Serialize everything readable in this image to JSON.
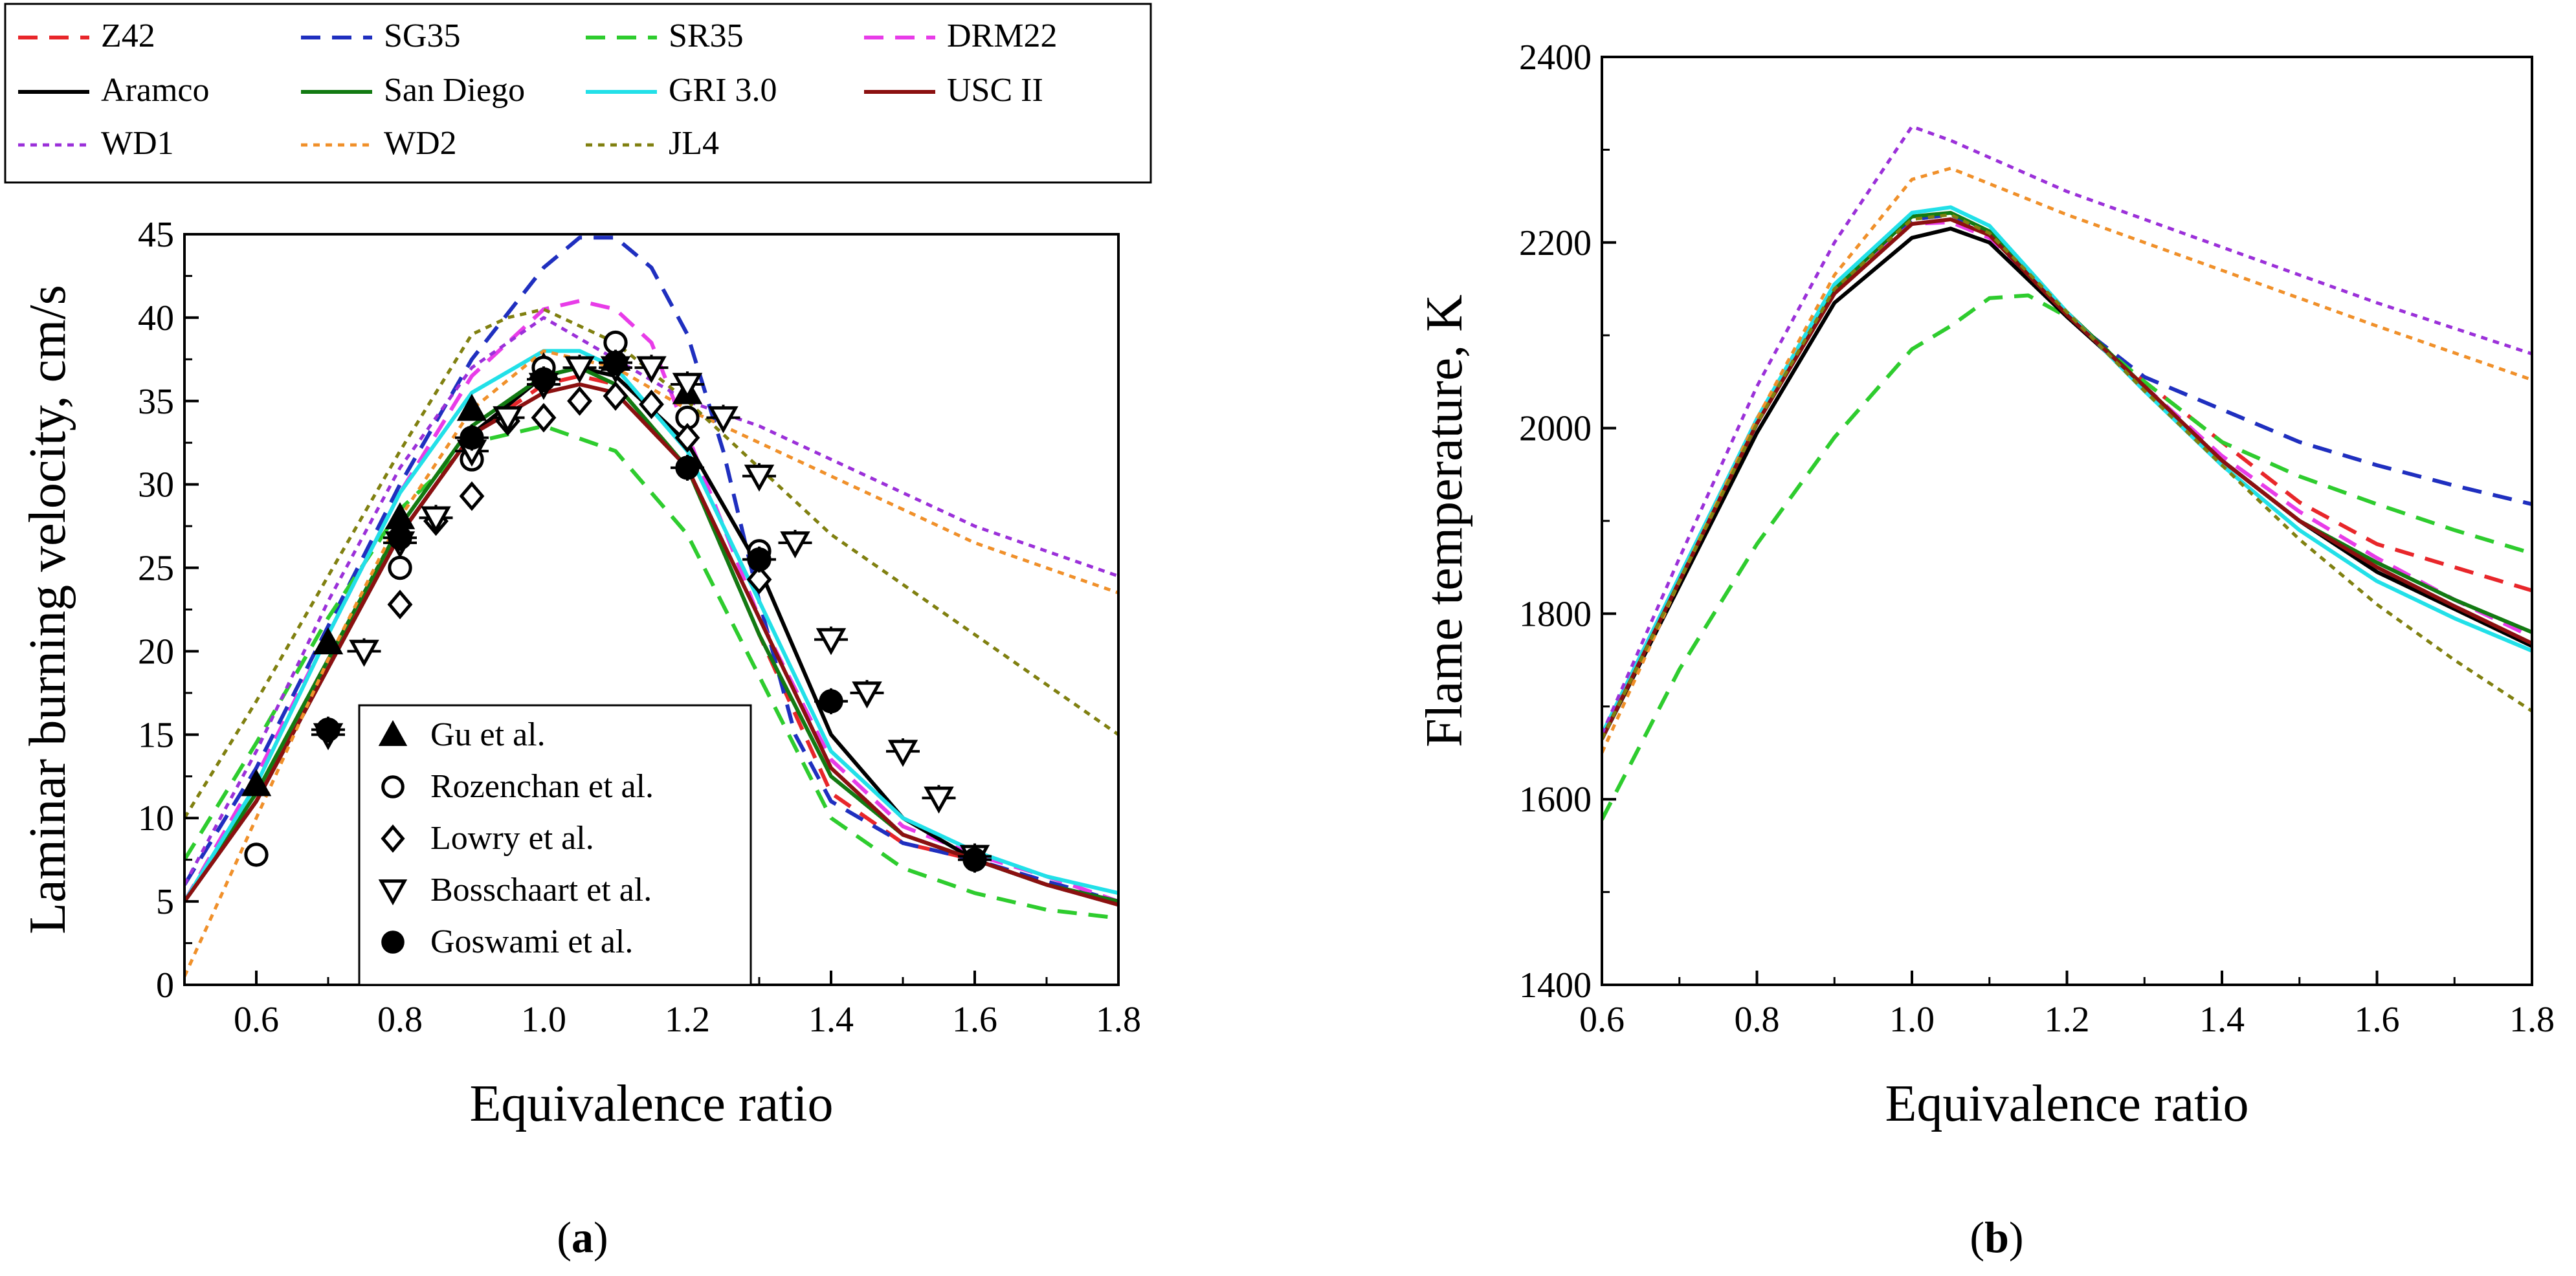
{
  "figure": {
    "caption_a": "(a)",
    "caption_a_letter": "a",
    "caption_b": "(b)",
    "caption_b_letter": "b"
  },
  "legend_models": [
    {
      "name": "Z42",
      "color": "#e8262a",
      "dash": "long"
    },
    {
      "name": "SG35",
      "color": "#1f2fbf",
      "dash": "long"
    },
    {
      "name": "SR35",
      "color": "#2ecc2e",
      "dash": "long"
    },
    {
      "name": "DRM22",
      "color": "#e83ce8",
      "dash": "long"
    },
    {
      "name": "Aramco",
      "color": "#000000",
      "dash": "solid"
    },
    {
      "name": "San Diego",
      "color": "#127a12",
      "dash": "solid"
    },
    {
      "name": "GRI 3.0",
      "color": "#22e0e8",
      "dash": "solid"
    },
    {
      "name": "USC II",
      "color": "#8b1010",
      "dash": "solid"
    },
    {
      "name": "WD1",
      "color": "#9b30d9",
      "dash": "dot"
    },
    {
      "name": "WD2",
      "color": "#f0902a",
      "dash": "dot"
    },
    {
      "name": "JL4",
      "color": "#808010",
      "dash": "dot"
    }
  ],
  "chart_data": [
    {
      "type": "line",
      "panel": "a",
      "title": "",
      "xlabel": "Equivalence ratio",
      "ylabel": "Laminar burning velocity, cm/s",
      "xlim": [
        0.5,
        1.8
      ],
      "ylim": [
        0,
        45
      ],
      "xticks": [
        0.6,
        0.8,
        1.0,
        1.2,
        1.4,
        1.6,
        1.8
      ],
      "xtick_labels": [
        "0.6",
        "0.8",
        "1.0",
        "1.2",
        "1.4",
        "1.6",
        "1.8"
      ],
      "yticks": [
        0,
        5,
        10,
        15,
        20,
        25,
        30,
        35,
        40,
        45
      ],
      "ytick_labels": [
        "0",
        "5",
        "10",
        "15",
        "20",
        "25",
        "30",
        "35",
        "40",
        "45"
      ],
      "series": [
        {
          "name": "Z42",
          "x": [
            0.5,
            0.6,
            0.7,
            0.8,
            0.9,
            1.0,
            1.05,
            1.1,
            1.2,
            1.3,
            1.4,
            1.5,
            1.6,
            1.7,
            1.8
          ],
          "y": [
            5.0,
            11.5,
            19.5,
            27.0,
            33.0,
            36.0,
            36.5,
            36.0,
            31.0,
            21.0,
            11.5,
            8.5,
            7.5,
            6.0,
            5.0
          ]
        },
        {
          "name": "SG35",
          "x": [
            0.5,
            0.6,
            0.7,
            0.8,
            0.9,
            1.0,
            1.05,
            1.1,
            1.15,
            1.2,
            1.25,
            1.3,
            1.35,
            1.4,
            1.5,
            1.6,
            1.7,
            1.8
          ],
          "y": [
            6.0,
            13.0,
            21.5,
            30.0,
            37.5,
            43.0,
            44.8,
            44.8,
            43.0,
            39.0,
            32.0,
            23.0,
            15.0,
            11.0,
            8.5,
            7.5,
            6.2,
            5.0
          ]
        },
        {
          "name": "SR35",
          "x": [
            0.5,
            0.6,
            0.7,
            0.8,
            0.9,
            1.0,
            1.1,
            1.2,
            1.3,
            1.4,
            1.5,
            1.6,
            1.7,
            1.8
          ],
          "y": [
            7.5,
            14.5,
            22.0,
            28.5,
            32.5,
            33.5,
            32.0,
            27.0,
            18.5,
            10.0,
            7.0,
            5.5,
            4.5,
            4.0
          ]
        },
        {
          "name": "DRM22",
          "x": [
            0.5,
            0.6,
            0.7,
            0.8,
            0.9,
            1.0,
            1.05,
            1.1,
            1.15,
            1.2,
            1.3,
            1.4,
            1.5,
            1.6,
            1.7,
            1.8
          ],
          "y": [
            5.0,
            12.5,
            21.0,
            29.5,
            36.5,
            40.5,
            41.0,
            40.5,
            38.5,
            33.0,
            22.0,
            13.5,
            9.5,
            7.8,
            6.5,
            5.0
          ]
        },
        {
          "name": "Aramco",
          "x": [
            0.5,
            0.6,
            0.7,
            0.8,
            0.9,
            1.0,
            1.05,
            1.1,
            1.2,
            1.3,
            1.35,
            1.4,
            1.5,
            1.6,
            1.7,
            1.8
          ],
          "y": [
            5.0,
            11.0,
            19.0,
            27.0,
            33.0,
            36.5,
            37.0,
            36.5,
            32.5,
            25.0,
            20.0,
            15.0,
            10.0,
            7.5,
            6.0,
            5.0
          ]
        },
        {
          "name": "San Diego",
          "x": [
            0.5,
            0.6,
            0.7,
            0.8,
            0.9,
            1.0,
            1.05,
            1.1,
            1.2,
            1.3,
            1.4,
            1.5,
            1.6,
            1.7,
            1.8
          ],
          "y": [
            5.0,
            11.5,
            19.5,
            27.5,
            33.5,
            36.5,
            37.0,
            36.0,
            31.0,
            21.0,
            12.5,
            9.0,
            7.5,
            6.0,
            5.0
          ]
        },
        {
          "name": "GRI 3.0",
          "x": [
            0.5,
            0.6,
            0.7,
            0.8,
            0.9,
            1.0,
            1.05,
            1.1,
            1.2,
            1.3,
            1.4,
            1.5,
            1.6,
            1.7,
            1.8
          ],
          "y": [
            5.0,
            12.0,
            21.0,
            29.5,
            35.5,
            38.0,
            38.0,
            37.0,
            32.0,
            23.0,
            14.0,
            10.0,
            8.0,
            6.5,
            5.5
          ]
        },
        {
          "name": "USC II",
          "x": [
            0.5,
            0.6,
            0.7,
            0.8,
            0.9,
            1.0,
            1.05,
            1.1,
            1.2,
            1.3,
            1.4,
            1.5,
            1.6,
            1.7,
            1.8
          ],
          "y": [
            5.0,
            11.0,
            19.0,
            27.0,
            33.0,
            35.5,
            36.0,
            35.5,
            31.0,
            22.0,
            13.0,
            9.0,
            7.5,
            6.0,
            4.8
          ]
        },
        {
          "name": "WD1",
          "x": [
            0.5,
            0.6,
            0.7,
            0.8,
            0.9,
            1.0,
            1.1,
            1.2,
            1.3,
            1.4,
            1.5,
            1.6,
            1.7,
            1.8
          ],
          "y": [
            6.0,
            14.0,
            23.0,
            31.0,
            37.0,
            40.0,
            37.5,
            35.0,
            33.5,
            31.5,
            29.5,
            27.5,
            26.0,
            24.5
          ]
        },
        {
          "name": "WD2",
          "x": [
            0.5,
            0.6,
            0.7,
            0.8,
            0.9,
            1.0,
            1.1,
            1.2,
            1.3,
            1.4,
            1.5,
            1.6,
            1.7,
            1.8
          ],
          "y": [
            0.5,
            10.0,
            19.5,
            28.0,
            34.5,
            38.0,
            37.0,
            34.5,
            32.5,
            30.5,
            28.5,
            26.5,
            25.0,
            23.5
          ]
        },
        {
          "name": "JL4",
          "x": [
            0.5,
            0.6,
            0.7,
            0.8,
            0.9,
            0.95,
            1.0,
            1.1,
            1.2,
            1.3,
            1.4,
            1.5,
            1.6,
            1.7,
            1.8
          ],
          "y": [
            10.0,
            17.0,
            24.5,
            32.0,
            39.0,
            40.0,
            40.5,
            38.5,
            35.0,
            31.0,
            27.0,
            24.0,
            21.0,
            18.0,
            15.0
          ]
        }
      ],
      "experiments": [
        {
          "name": "Gu et al.",
          "marker": "triangle-up",
          "filled": true,
          "x": [
            0.6,
            0.7,
            0.8,
            0.9,
            1.0,
            1.1,
            1.2
          ],
          "y": [
            12.0,
            20.5,
            28.0,
            34.5,
            37.0,
            37.5,
            35.5
          ]
        },
        {
          "name": "Rozenchan et al.",
          "marker": "circle",
          "filled": false,
          "x": [
            0.6,
            0.8,
            0.9,
            1.0,
            1.1,
            1.2,
            1.3
          ],
          "y": [
            7.8,
            25.0,
            31.5,
            37.0,
            38.5,
            34.0,
            26.0
          ]
        },
        {
          "name": "Lowry et al.",
          "marker": "diamond",
          "filled": false,
          "x": [
            0.8,
            0.85,
            0.9,
            0.95,
            1.0,
            1.05,
            1.1,
            1.15,
            1.2,
            1.3
          ],
          "y": [
            22.8,
            27.8,
            29.3,
            33.8,
            34.0,
            35.0,
            35.3,
            34.8,
            32.8,
            24.3
          ]
        },
        {
          "name": "Bosschaart et al.",
          "marker": "triangle-down",
          "filled": false,
          "x": [
            0.7,
            0.75,
            0.8,
            0.85,
            0.9,
            0.95,
            1.0,
            1.05,
            1.1,
            1.15,
            1.2,
            1.25,
            1.3,
            1.35,
            1.4,
            1.45,
            1.5,
            1.55,
            1.6
          ],
          "y": [
            15.0,
            20.0,
            26.5,
            28.0,
            32.0,
            34.0,
            36.0,
            37.0,
            37.0,
            37.0,
            36.0,
            34.0,
            30.5,
            26.5,
            20.7,
            17.5,
            14.0,
            11.2,
            7.7
          ]
        },
        {
          "name": "Goswami et al.",
          "marker": "circle",
          "filled": true,
          "x": [
            0.7,
            0.8,
            0.9,
            1.0,
            1.1,
            1.2,
            1.3,
            1.4,
            1.6
          ],
          "y": [
            15.3,
            26.8,
            32.8,
            36.3,
            37.3,
            31.0,
            25.5,
            17.0,
            7.5
          ]
        }
      ]
    },
    {
      "type": "line",
      "panel": "b",
      "title": "",
      "xlabel": "Equivalence ratio",
      "ylabel": "Flame temperature, K",
      "xlim": [
        0.6,
        1.8
      ],
      "ylim": [
        1400,
        2400
      ],
      "xticks": [
        0.6,
        0.8,
        1.0,
        1.2,
        1.4,
        1.6,
        1.8
      ],
      "xtick_labels": [
        "0.6",
        "0.8",
        "1.0",
        "1.2",
        "1.4",
        "1.6",
        "1.8"
      ],
      "yticks": [
        1400,
        1600,
        1800,
        2000,
        2200,
        2400
      ],
      "ytick_labels": [
        "1400",
        "1600",
        "1800",
        "2000",
        "2200",
        "2400"
      ],
      "series": [
        {
          "name": "Z42",
          "x": [
            0.6,
            0.7,
            0.8,
            0.9,
            1.0,
            1.05,
            1.1,
            1.2,
            1.3,
            1.4,
            1.5,
            1.6,
            1.7,
            1.8
          ],
          "y": [
            1665,
            1835,
            2005,
            2150,
            2225,
            2230,
            2210,
            2120,
            2050,
            1985,
            1920,
            1875,
            1850,
            1825
          ]
        },
        {
          "name": "SG35",
          "x": [
            0.6,
            0.7,
            0.8,
            0.9,
            1.0,
            1.05,
            1.1,
            1.2,
            1.3,
            1.4,
            1.5,
            1.6,
            1.7,
            1.8
          ],
          "y": [
            1665,
            1835,
            2005,
            2150,
            2225,
            2230,
            2210,
            2120,
            2055,
            2020,
            1985,
            1960,
            1938,
            1918
          ]
        },
        {
          "name": "SR35",
          "x": [
            0.6,
            0.7,
            0.8,
            0.9,
            1.0,
            1.05,
            1.1,
            1.15,
            1.2,
            1.3,
            1.4,
            1.5,
            1.6,
            1.7,
            1.8
          ],
          "y": [
            1578,
            1740,
            1875,
            1990,
            2085,
            2110,
            2140,
            2143,
            2120,
            2050,
            1985,
            1948,
            1918,
            1890,
            1865
          ]
        },
        {
          "name": "DRM22",
          "x": [
            0.6,
            0.7,
            0.8,
            0.9,
            1.0,
            1.05,
            1.1,
            1.2,
            1.3,
            1.4,
            1.5,
            1.6,
            1.7,
            1.8
          ],
          "y": [
            1665,
            1835,
            2005,
            2150,
            2220,
            2222,
            2205,
            2120,
            2045,
            1970,
            1910,
            1860,
            1815,
            1775
          ]
        },
        {
          "name": "Aramco",
          "x": [
            0.6,
            0.7,
            0.8,
            0.9,
            1.0,
            1.05,
            1.1,
            1.2,
            1.3,
            1.4,
            1.5,
            1.6,
            1.7,
            1.8
          ],
          "y": [
            1665,
            1830,
            1995,
            2135,
            2205,
            2215,
            2200,
            2120,
            2045,
            1965,
            1900,
            1845,
            1805,
            1765
          ]
        },
        {
          "name": "San Diego",
          "x": [
            0.6,
            0.7,
            0.8,
            0.9,
            1.0,
            1.05,
            1.1,
            1.2,
            1.3,
            1.4,
            1.5,
            1.6,
            1.7,
            1.8
          ],
          "y": [
            1665,
            1835,
            2005,
            2150,
            2228,
            2232,
            2212,
            2125,
            2045,
            1965,
            1900,
            1855,
            1815,
            1780
          ]
        },
        {
          "name": "GRI 3.0",
          "x": [
            0.6,
            0.7,
            0.8,
            0.9,
            1.0,
            1.05,
            1.1,
            1.2,
            1.3,
            1.4,
            1.5,
            1.6,
            1.7,
            1.8
          ],
          "y": [
            1670,
            1840,
            2010,
            2155,
            2232,
            2238,
            2218,
            2125,
            2040,
            1960,
            1890,
            1835,
            1795,
            1760
          ]
        },
        {
          "name": "USC II",
          "x": [
            0.6,
            0.7,
            0.8,
            0.9,
            1.0,
            1.05,
            1.1,
            1.2,
            1.3,
            1.4,
            1.5,
            1.6,
            1.7,
            1.8
          ],
          "y": [
            1665,
            1835,
            2005,
            2145,
            2220,
            2225,
            2208,
            2122,
            2045,
            1965,
            1900,
            1850,
            1808,
            1768
          ]
        },
        {
          "name": "WD1",
          "x": [
            0.6,
            0.7,
            0.8,
            0.9,
            1.0,
            1.05,
            1.2,
            1.4,
            1.6,
            1.8
          ],
          "y": [
            1670,
            1860,
            2045,
            2200,
            2325,
            2310,
            2255,
            2195,
            2135,
            2080
          ]
        },
        {
          "name": "WD2",
          "x": [
            0.6,
            0.7,
            0.8,
            0.9,
            1.0,
            1.05,
            1.2,
            1.4,
            1.6,
            1.8
          ],
          "y": [
            1650,
            1835,
            2010,
            2165,
            2268,
            2280,
            2230,
            2170,
            2110,
            2052
          ]
        },
        {
          "name": "JL4",
          "x": [
            0.6,
            0.7,
            0.8,
            0.9,
            1.0,
            1.05,
            1.1,
            1.2,
            1.3,
            1.4,
            1.5,
            1.6,
            1.7,
            1.8
          ],
          "y": [
            1665,
            1835,
            2005,
            2150,
            2225,
            2230,
            2210,
            2125,
            2040,
            1960,
            1880,
            1810,
            1750,
            1695
          ]
        }
      ]
    }
  ]
}
